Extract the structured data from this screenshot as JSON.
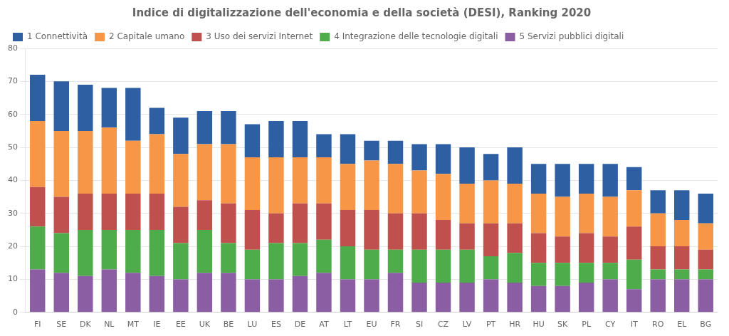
{
  "chart_data": {
    "type": "bar",
    "title": "Indice di digitalizzazione dell'economia e della società (DESI), Ranking 2020",
    "categories": [
      "FI",
      "SE",
      "DK",
      "NL",
      "MT",
      "IE",
      "EE",
      "UK",
      "BE",
      "LU",
      "ES",
      "DE",
      "AT",
      "LT",
      "EU",
      "FR",
      "SI",
      "CZ",
      "LV",
      "PT",
      "HR",
      "HU",
      "SK",
      "PL",
      "CY",
      "IT",
      "RO",
      "EL",
      "BG"
    ],
    "series": [
      {
        "name": "5 Servizi pubblici digitali",
        "color": "#8B5EA4",
        "values": [
          13,
          12,
          11,
          13,
          12,
          11,
          10,
          12,
          12,
          10,
          10,
          11,
          12,
          10,
          10,
          12,
          9,
          9,
          9,
          10,
          9,
          8,
          8,
          9,
          10,
          7,
          10,
          10,
          10
        ]
      },
      {
        "name": "4 Integrazione delle tecnologie digitali",
        "color": "#4EAC4A",
        "values": [
          13,
          12,
          14,
          12,
          13,
          14,
          11,
          13,
          9,
          9,
          11,
          10,
          10,
          10,
          9,
          7,
          10,
          10,
          10,
          7,
          9,
          7,
          7,
          6,
          5,
          9,
          3,
          3,
          3
        ]
      },
      {
        "name": "3 Uso dei servizi Internet",
        "color": "#C0504D",
        "values": [
          12,
          11,
          11,
          11,
          11,
          11,
          11,
          9,
          12,
          12,
          9,
          12,
          11,
          11,
          12,
          11,
          11,
          9,
          8,
          10,
          9,
          9,
          8,
          9,
          8,
          10,
          7,
          7,
          6
        ]
      },
      {
        "name": "2 Capitale umano",
        "color": "#F79646",
        "values": [
          20,
          20,
          19,
          20,
          16,
          18,
          16,
          17,
          18,
          16,
          17,
          14,
          14,
          14,
          15,
          15,
          13,
          14,
          12,
          13,
          12,
          12,
          12,
          12,
          12,
          11,
          10,
          8,
          8
        ]
      },
      {
        "name": "1 Connettività",
        "color": "#2E5FA3",
        "values": [
          14,
          15,
          14,
          12,
          16,
          8,
          11,
          10,
          10,
          10,
          11,
          11,
          7,
          9,
          6,
          7,
          8,
          9,
          11,
          8,
          11,
          9,
          10,
          9,
          10,
          7,
          7,
          9,
          9
        ]
      }
    ],
    "stacked": true,
    "ylim": [
      0,
      80
    ],
    "yticks": [
      0,
      10,
      20,
      30,
      40,
      50,
      60,
      70,
      80
    ],
    "grid": true,
    "legend": "upper left"
  }
}
